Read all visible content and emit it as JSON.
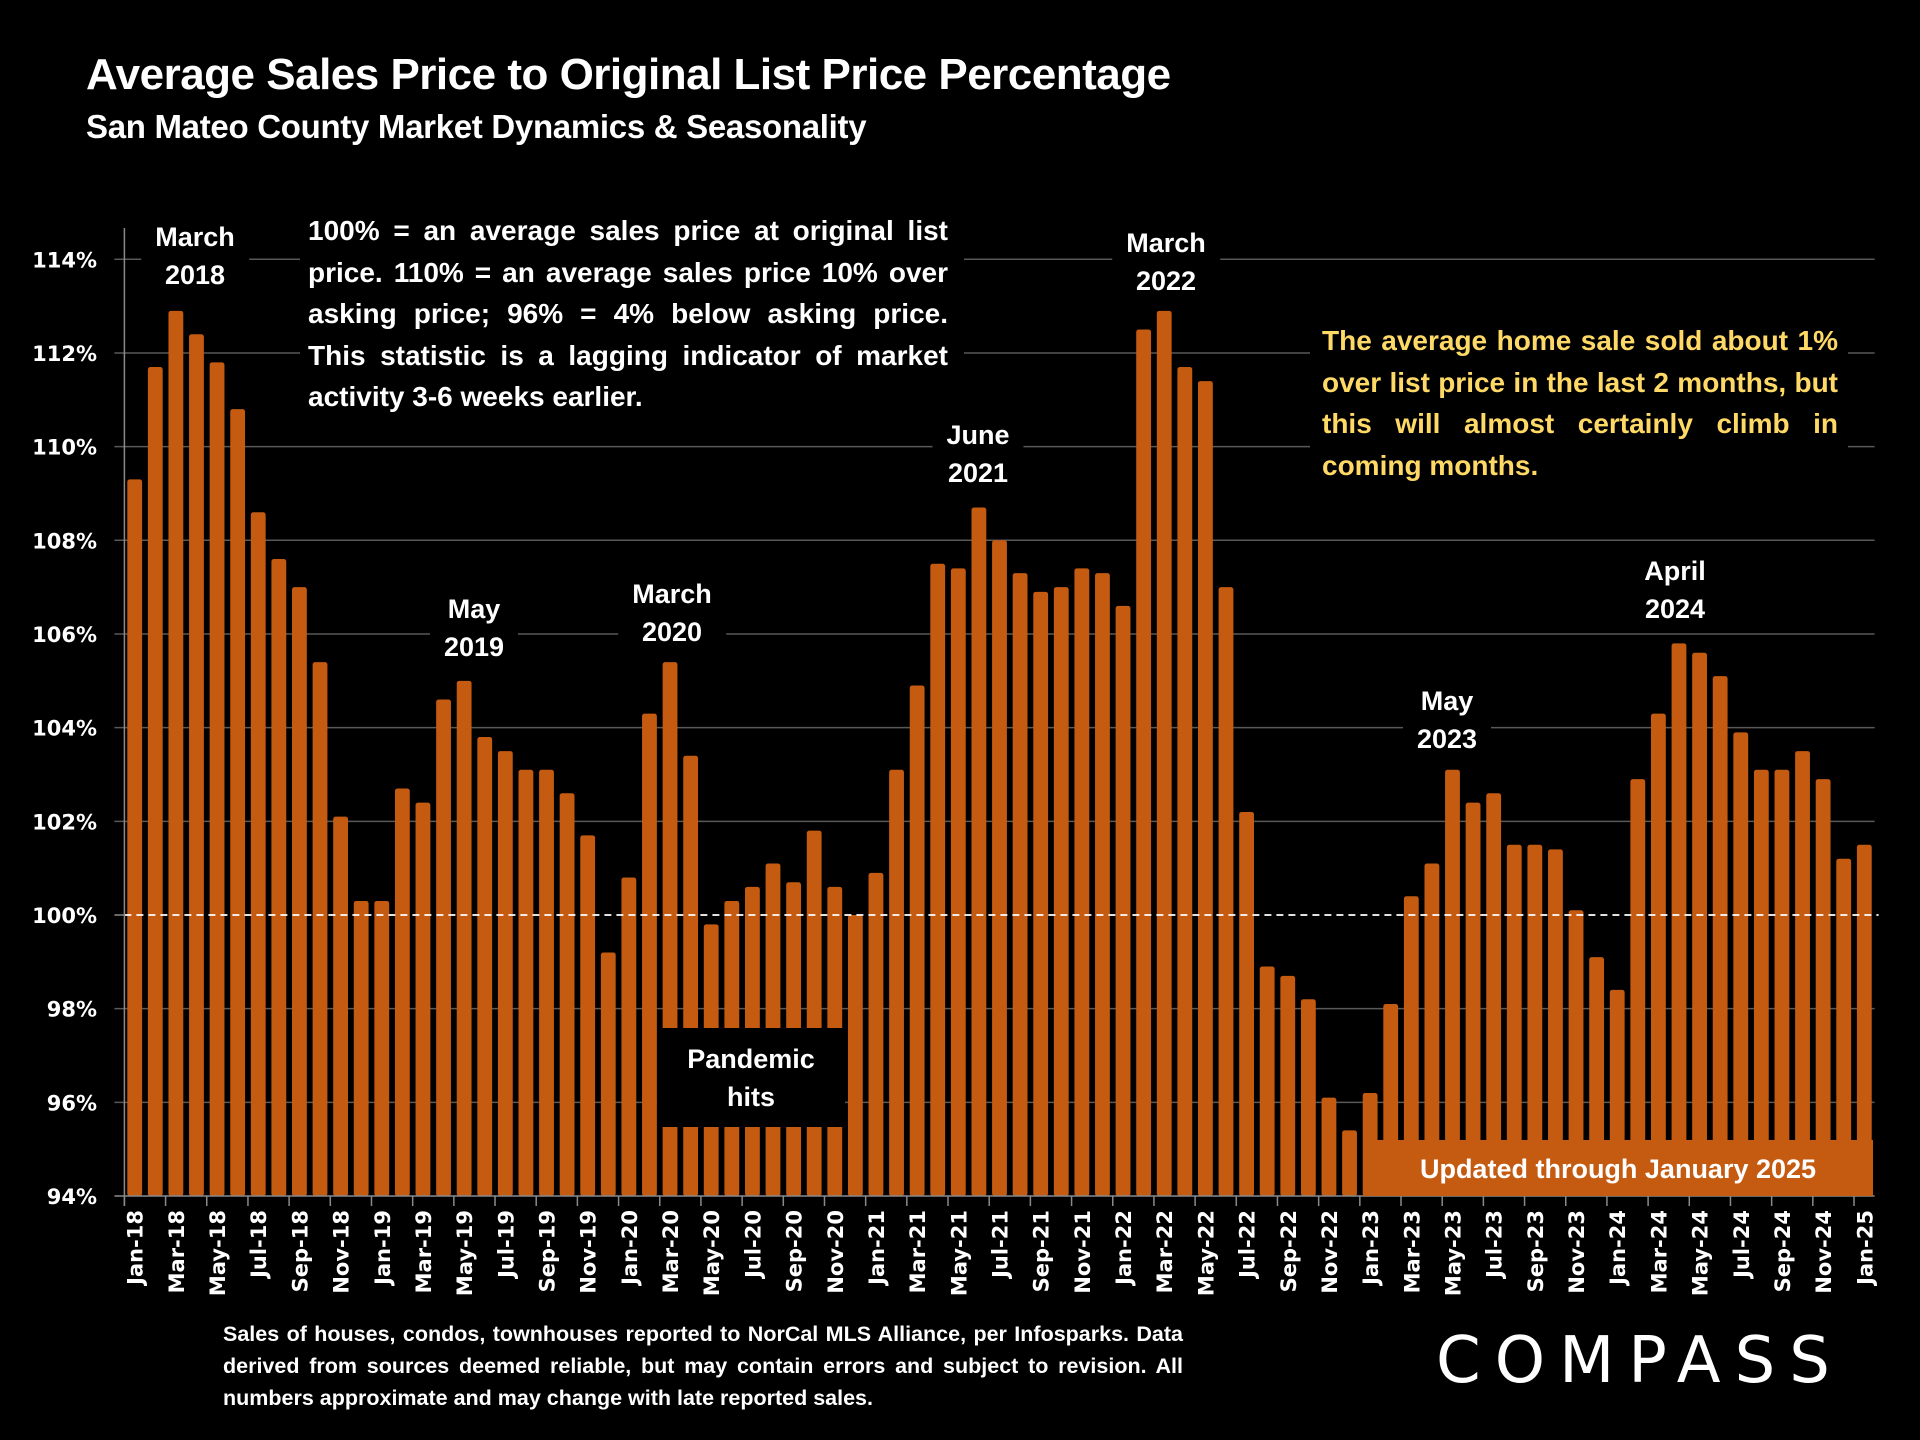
{
  "header": {
    "title": "Average Sales Price to Original List Price Percentage",
    "subtitle": "San Mateo County Market Dynamics & Seasonality"
  },
  "notes": {
    "definition": "100% = an average sales price at original list price. 110% = an average sales price 10% over asking price; 96% = 4% below asking price. This statistic is a lagging indicator of market activity 3-6 weeks earlier.",
    "commentary": "The average home sale sold about 1% over list price in the last 2 months, but this will almost certainly climb in coming months.",
    "pandemic_line1": "Pandemic",
    "pandemic_line2": "hits",
    "updated": "Updated through January 2025",
    "footnote": "Sales of houses, condos, townhouses reported to NorCal MLS Alliance, per Infosparks. Data derived from sources deemed reliable, but may contain errors and subject to revision. All numbers approximate and may change with late reported sales."
  },
  "annotations": [
    {
      "line1": "March",
      "line2": "2018"
    },
    {
      "line1": "May",
      "line2": "2019"
    },
    {
      "line1": "March",
      "line2": "2020"
    },
    {
      "line1": "June",
      "line2": "2021"
    },
    {
      "line1": "March",
      "line2": "2022"
    },
    {
      "line1": "May",
      "line2": "2023"
    },
    {
      "line1": "April",
      "line2": "2024"
    }
  ],
  "brand": {
    "logo_text": "COMPASS",
    "bar_color": "#C55A11",
    "highlight_text_color": "#FFD966",
    "background": "#000000"
  },
  "chart_data": {
    "type": "bar",
    "title": "Average Sales Price to Original List Price Percentage",
    "subtitle": "San Mateo County Market Dynamics & Seasonality",
    "xlabel": "",
    "ylabel": "",
    "ylim": [
      94,
      114
    ],
    "yticks": [
      94,
      96,
      98,
      100,
      102,
      104,
      106,
      108,
      110,
      112,
      114
    ],
    "ytick_format": "{v}%",
    "grid": true,
    "reference_line": {
      "value": 100,
      "style": "dashed"
    },
    "categories": [
      "Jan-18",
      "Feb-18",
      "Mar-18",
      "Apr-18",
      "May-18",
      "Jun-18",
      "Jul-18",
      "Aug-18",
      "Sep-18",
      "Oct-18",
      "Nov-18",
      "Dec-18",
      "Jan-19",
      "Feb-19",
      "Mar-19",
      "Apr-19",
      "May-19",
      "Jun-19",
      "Jul-19",
      "Aug-19",
      "Sep-19",
      "Oct-19",
      "Nov-19",
      "Dec-19",
      "Jan-20",
      "Feb-20",
      "Mar-20",
      "Apr-20",
      "May-20",
      "Jun-20",
      "Jul-20",
      "Aug-20",
      "Sep-20",
      "Oct-20",
      "Nov-20",
      "Dec-20",
      "Jan-21",
      "Feb-21",
      "Mar-21",
      "Apr-21",
      "May-21",
      "Jun-21",
      "Jul-21",
      "Aug-21",
      "Sep-21",
      "Oct-21",
      "Nov-21",
      "Dec-21",
      "Jan-22",
      "Feb-22",
      "Mar-22",
      "Apr-22",
      "May-22",
      "Jun-22",
      "Jul-22",
      "Aug-22",
      "Sep-22",
      "Oct-22",
      "Nov-22",
      "Dec-22",
      "Jan-23",
      "Feb-23",
      "Mar-23",
      "Apr-23",
      "May-23",
      "Jun-23",
      "Jul-23",
      "Aug-23",
      "Sep-23",
      "Oct-23",
      "Nov-23",
      "Dec-23",
      "Jan-24",
      "Feb-24",
      "Mar-24",
      "Apr-24",
      "May-24",
      "Jun-24",
      "Jul-24",
      "Aug-24",
      "Sep-24",
      "Oct-24",
      "Nov-24",
      "Dec-24",
      "Jan-25"
    ],
    "values": [
      109.3,
      111.7,
      112.9,
      112.4,
      111.8,
      110.8,
      108.6,
      107.6,
      107.0,
      105.4,
      102.1,
      100.3,
      100.3,
      102.7,
      102.4,
      104.6,
      105.0,
      103.8,
      103.5,
      103.1,
      103.1,
      102.6,
      101.7,
      99.2,
      100.8,
      104.3,
      105.4,
      103.4,
      99.8,
      100.3,
      100.6,
      101.1,
      100.7,
      101.8,
      100.6,
      100.0,
      100.9,
      103.1,
      104.9,
      107.5,
      107.4,
      108.7,
      108.0,
      107.3,
      106.9,
      107.0,
      107.4,
      107.3,
      106.6,
      112.5,
      112.9,
      111.7,
      111.4,
      107.0,
      102.2,
      98.9,
      98.7,
      98.2,
      96.1,
      95.4,
      96.2,
      98.1,
      100.4,
      101.1,
      103.1,
      102.4,
      102.6,
      101.5,
      101.5,
      101.4,
      100.1,
      99.1,
      98.4,
      102.9,
      104.3,
      105.8,
      105.6,
      105.1,
      103.9,
      103.1,
      103.1,
      103.5,
      102.9,
      101.2,
      101.5
    ],
    "x_tick_labels_shown": "every other month starting Jan-18",
    "series": [
      {
        "name": "Avg Sales Price to Original List Price %",
        "color": "#C55A11"
      }
    ]
  }
}
